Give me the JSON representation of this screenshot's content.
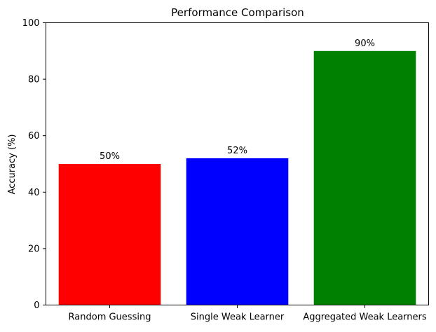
{
  "chart_data": {
    "type": "bar",
    "title": "Performance Comparison",
    "xlabel": "",
    "ylabel": "Accuracy (%)",
    "ylim": [
      0,
      100
    ],
    "yticks": [
      0,
      20,
      40,
      60,
      80,
      100
    ],
    "ytick_labels": [
      "0",
      "20",
      "40",
      "60",
      "80",
      "100"
    ],
    "grid": false,
    "categories": [
      "Random Guessing",
      "Single Weak Learner",
      "Aggregated Weak Learners"
    ],
    "values": [
      50,
      52,
      90
    ],
    "value_labels": [
      "50%",
      "52%",
      "90%"
    ],
    "colors": [
      "#ff0000",
      "#0000ff",
      "#008000"
    ]
  }
}
